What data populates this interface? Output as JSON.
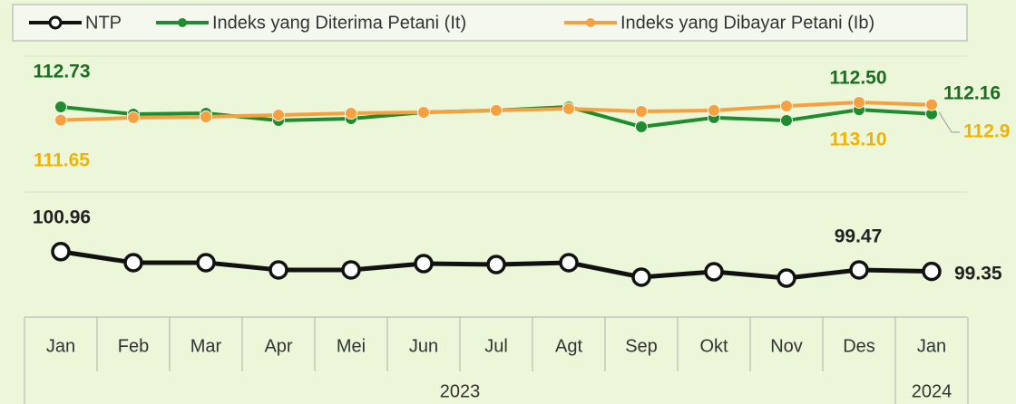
{
  "chart_data": {
    "type": "line",
    "categories": [
      "Jan",
      "Feb",
      "Mar",
      "Apr",
      "Mei",
      "Jun",
      "Jul",
      "Agt",
      "Sep",
      "Okt",
      "Nov",
      "Des",
      "Jan"
    ],
    "x_groups": [
      {
        "label": "2023",
        "span": 12
      },
      {
        "label": "2024",
        "span": 1
      }
    ],
    "ylim": [
      98,
      116
    ],
    "series": [
      {
        "name": "NTP",
        "color": "#111111",
        "values": [
          100.96,
          100.06,
          100.06,
          99.47,
          99.47,
          99.98,
          99.91,
          100.06,
          98.88,
          99.32,
          98.8,
          99.47,
          99.35
        ],
        "value_labels": [
          "100.96",
          null,
          null,
          null,
          null,
          null,
          null,
          null,
          null,
          null,
          null,
          "99.47",
          "99.35"
        ]
      },
      {
        "name": "Indeks yang Diterima Petani (It)",
        "color": "#1e8c2f",
        "values": [
          112.73,
          112.14,
          112.21,
          111.62,
          111.77,
          112.29,
          112.44,
          112.73,
          111.11,
          111.85,
          111.62,
          112.5,
          112.16
        ],
        "value_labels": [
          "112.73",
          null,
          null,
          null,
          null,
          null,
          null,
          null,
          null,
          null,
          null,
          "112.50",
          "112.16"
        ]
      },
      {
        "name": "Indeks yang Dibayar Petani (Ib)",
        "color": "#f7a040",
        "values": [
          111.65,
          111.85,
          111.92,
          112.07,
          112.21,
          112.29,
          112.44,
          112.58,
          112.36,
          112.44,
          112.8,
          113.1,
          112.9
        ],
        "value_labels": [
          "111.65",
          null,
          null,
          null,
          null,
          null,
          null,
          null,
          null,
          null,
          null,
          "113.10",
          "112.9"
        ]
      }
    ]
  }
}
